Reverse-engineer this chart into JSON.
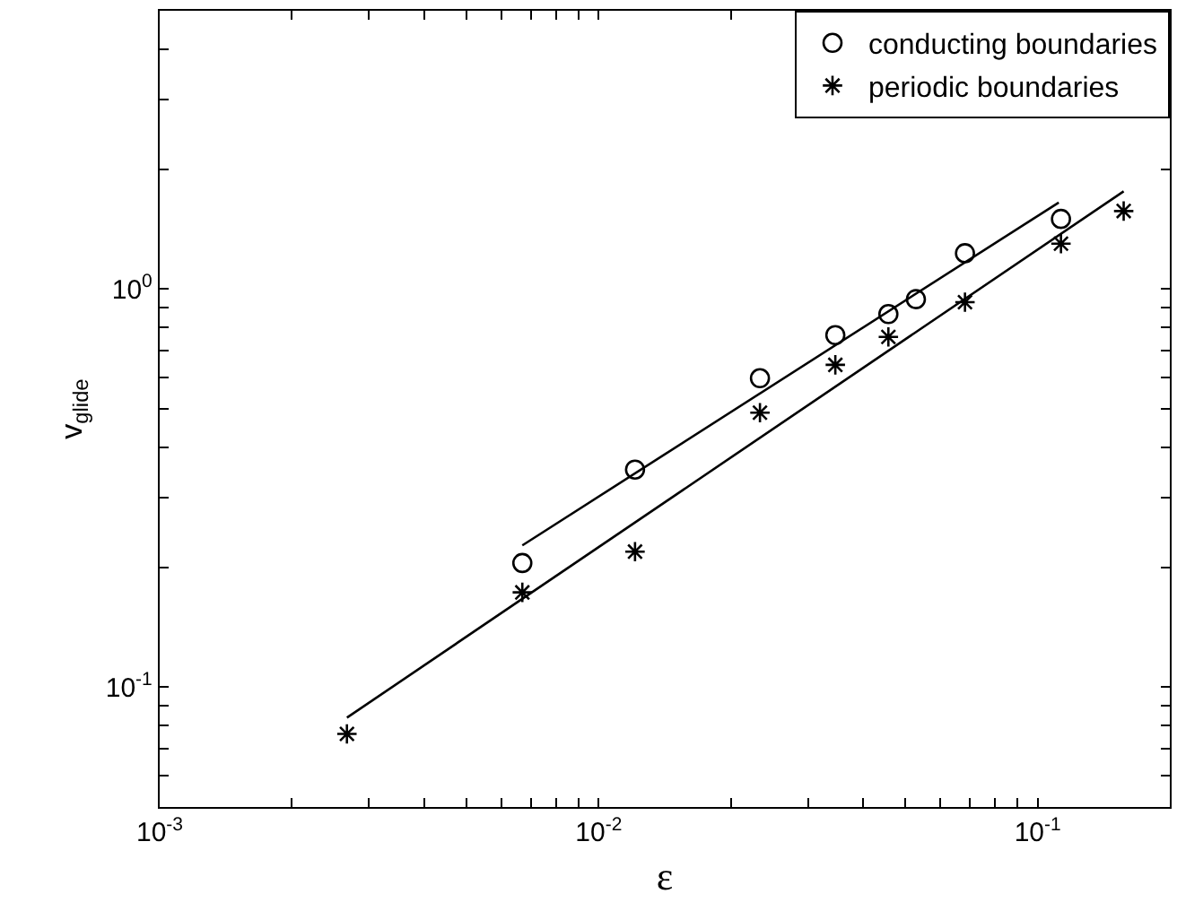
{
  "chart_data": {
    "type": "scatter",
    "xlabel": "ε",
    "ylabel": "v$_{glide}$",
    "log": "xy",
    "grid": false,
    "legend": "top right",
    "xlim": [
      0.001,
      0.2
    ],
    "ylim": [
      0.05,
      5
    ],
    "xticks": [
      {
        "value": 0.001,
        "label": "10$^{-3}$"
      },
      {
        "value": 0.002,
        "label": null
      },
      {
        "value": 0.003,
        "label": null
      },
      {
        "value": 0.004,
        "label": null
      },
      {
        "value": 0.005,
        "label": null
      },
      {
        "value": 0.006,
        "label": null
      },
      {
        "value": 0.007,
        "label": null
      },
      {
        "value": 0.008,
        "label": null
      },
      {
        "value": 0.009,
        "label": null
      },
      {
        "value": 0.01,
        "label": "10$^{-2}$"
      },
      {
        "value": 0.02,
        "label": null
      },
      {
        "value": 0.03,
        "label": null
      },
      {
        "value": 0.04,
        "label": null
      },
      {
        "value": 0.05,
        "label": null
      },
      {
        "value": 0.06,
        "label": null
      },
      {
        "value": 0.07,
        "label": null
      },
      {
        "value": 0.08,
        "label": null
      },
      {
        "value": 0.09,
        "label": null
      },
      {
        "value": 0.1,
        "label": "10$^{-1}$"
      },
      {
        "value": 0.2,
        "label": null
      }
    ],
    "yticks": [
      {
        "value": 0.05,
        "label": null
      },
      {
        "value": 0.06,
        "label": null
      },
      {
        "value": 0.07,
        "label": null
      },
      {
        "value": 0.08,
        "label": null
      },
      {
        "value": 0.09,
        "label": null
      },
      {
        "value": 0.1,
        "label": "10$^{-1}$"
      },
      {
        "value": 0.2,
        "label": null
      },
      {
        "value": 0.3,
        "label": null
      },
      {
        "value": 0.4,
        "label": null
      },
      {
        "value": 0.5,
        "label": null
      },
      {
        "value": 0.6,
        "label": null
      },
      {
        "value": 0.7,
        "label": null
      },
      {
        "value": 0.8,
        "label": null
      },
      {
        "value": 0.9,
        "label": null
      },
      {
        "value": 1,
        "label": "10$^{0}$"
      },
      {
        "value": 2,
        "label": null
      },
      {
        "value": 3,
        "label": null
      },
      {
        "value": 4,
        "label": null
      },
      {
        "value": 5,
        "label": null
      }
    ],
    "series": [
      {
        "name": "conducting boundaries",
        "color": "#000000",
        "marker": "circle",
        "x": [
          0.0067,
          0.0121,
          0.0233,
          0.0346,
          0.0457,
          0.0528,
          0.0683,
          0.113
        ],
        "values": [
          0.205,
          0.352,
          0.597,
          0.766,
          0.865,
          0.943,
          1.23,
          1.5
        ]
      },
      {
        "name": "periodic boundaries",
        "color": "#000000",
        "marker": "cross",
        "x": [
          0.00267,
          0.0067,
          0.0121,
          0.0233,
          0.0346,
          0.0457,
          0.0683,
          0.113,
          0.157
        ],
        "values": [
          0.0763,
          0.173,
          0.219,
          0.489,
          0.645,
          0.758,
          0.927,
          1.3,
          1.57
        ]
      },
      {
        "type": "line",
        "color": "#000000",
        "marker": "none",
        "x": [
          0.0067,
          0.1117
        ],
        "values": [
          0.227,
          1.65
        ]
      },
      {
        "type": "line",
        "color": "#000000",
        "marker": "none",
        "x": [
          0.00267,
          0.157
        ],
        "values": [
          0.0838,
          1.76
        ]
      }
    ]
  }
}
